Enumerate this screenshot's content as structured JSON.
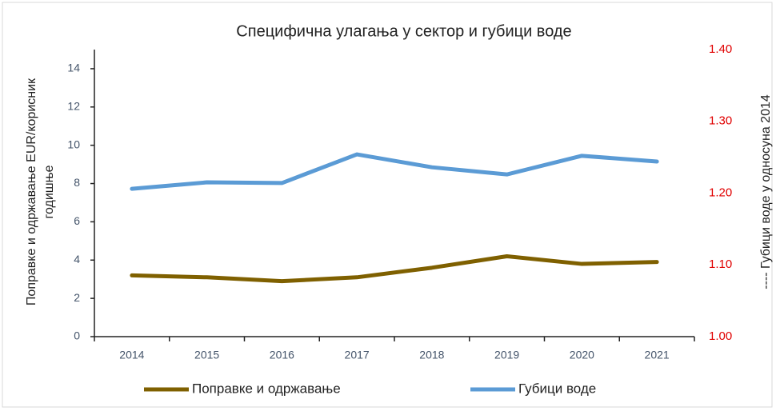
{
  "chart_data": {
    "type": "line",
    "title": "Специфична улагања  у сектор  и губици воде",
    "y_label": [
      "Поправке и одржавање EUR/корисник",
      "годишње"
    ],
    "y2_label": "---- Губици воде у односуна 2014",
    "categories": [
      "2014",
      "2015",
      "2016",
      "2017",
      "2018",
      "2019",
      "2020",
      "2021"
    ],
    "series": [
      {
        "name": "Поправке и одржавање",
        "color": "#7f6000",
        "values": [
          3.2,
          3.1,
          2.9,
          3.1,
          3.6,
          4.2,
          3.8,
          3.9
        ]
      },
      {
        "name": "Губици воде",
        "color": "#5b9bd5",
        "axis": "y2",
        "values": [
          1.206,
          1.215,
          1.214,
          1.254,
          1.236,
          1.226,
          1.252,
          1.244
        ]
      }
    ],
    "ylim": [
      0,
      15
    ],
    "yticks": [
      0,
      2,
      4,
      6,
      8,
      10,
      12,
      14
    ],
    "y2lim": [
      1.0,
      1.4
    ],
    "y2ticks": [
      {
        "value": 1.0,
        "label": "1.00"
      },
      {
        "value": 1.1,
        "label": "1.10"
      },
      {
        "value": 1.2,
        "label": "1.20"
      },
      {
        "value": 1.3,
        "label": "1.30"
      },
      {
        "value": 1.4,
        "label": "1.40"
      }
    ],
    "legend": "bottom"
  }
}
